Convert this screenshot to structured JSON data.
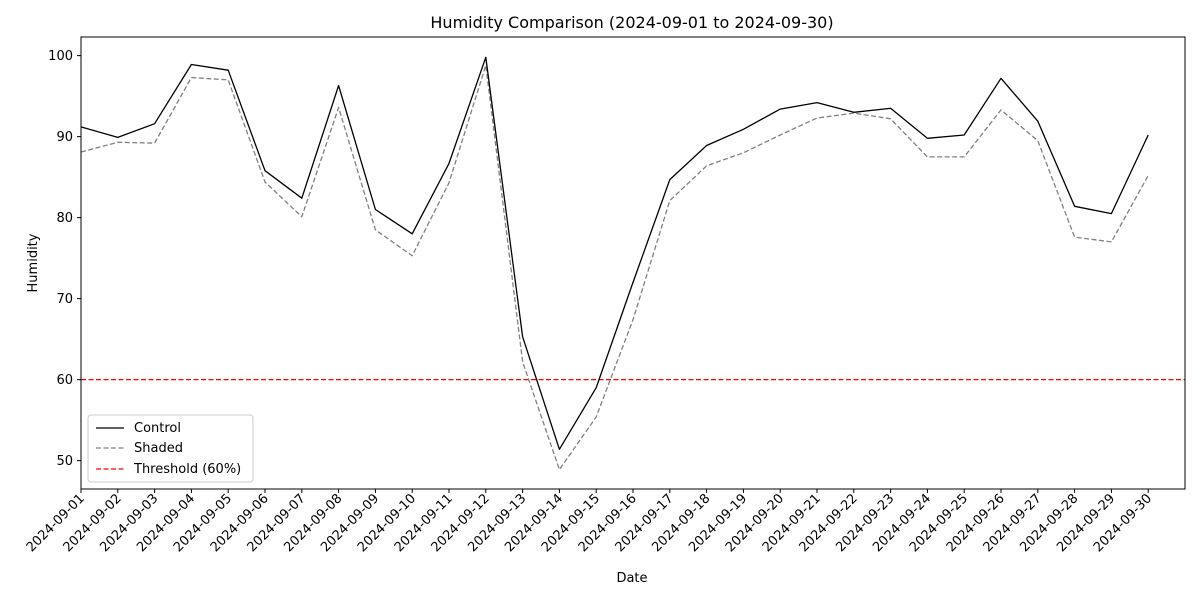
{
  "chart_data": {
    "type": "line",
    "title": "Humidity Comparison (2024-09-01 to 2024-09-30)",
    "xlabel": "Date",
    "ylabel": "Humidity",
    "ylim": [
      46.5,
      102.3
    ],
    "yticks": [
      50,
      60,
      70,
      80,
      90,
      100
    ],
    "x": [
      "2024-09-01",
      "2024-09-02",
      "2024-09-03",
      "2024-09-04",
      "2024-09-05",
      "2024-09-06",
      "2024-09-07",
      "2024-09-08",
      "2024-09-09",
      "2024-09-10",
      "2024-09-11",
      "2024-09-12",
      "2024-09-13",
      "2024-09-14",
      "2024-09-15",
      "2024-09-16",
      "2024-09-17",
      "2024-09-18",
      "2024-09-19",
      "2024-09-20",
      "2024-09-21",
      "2024-09-22",
      "2024-09-23",
      "2024-09-24",
      "2024-09-25",
      "2024-09-26",
      "2024-09-27",
      "2024-09-28",
      "2024-09-29",
      "2024-09-30"
    ],
    "series": [
      {
        "name": "Control",
        "color": "#000000",
        "dash": "solid",
        "values": [
          91.2,
          89.9,
          91.6,
          98.9,
          98.2,
          85.8,
          82.4,
          96.3,
          81.0,
          78.0,
          86.7,
          99.8,
          65.3,
          51.4,
          59.0,
          72.0,
          84.7,
          88.9,
          90.9,
          93.4,
          94.2,
          93.0,
          93.5,
          89.8,
          90.2,
          97.2,
          91.9,
          81.4,
          80.5,
          90.2
        ]
      },
      {
        "name": "Shaded",
        "color": "#808080",
        "dash": "dashed",
        "values": [
          88.1,
          89.3,
          89.2,
          97.3,
          97.0,
          84.4,
          80.1,
          93.6,
          78.5,
          75.3,
          84.3,
          98.8,
          62.2,
          48.9,
          55.4,
          67.4,
          82.1,
          86.4,
          88.0,
          90.2,
          92.3,
          92.9,
          92.2,
          87.5,
          87.5,
          93.3,
          89.5,
          77.6,
          77.0,
          85.2
        ]
      }
    ],
    "threshold": {
      "name": "Threshold (60%)",
      "value": 60,
      "color": "#ff0000",
      "dash": "dashed"
    },
    "legend_position": "lower-left",
    "grid": false
  }
}
